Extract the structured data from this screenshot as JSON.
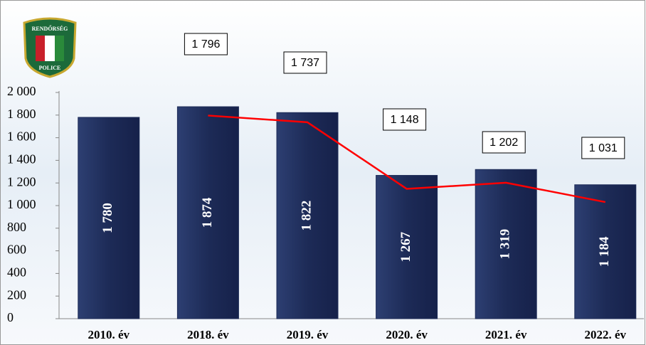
{
  "logo": {
    "top": "RENDŐRSÉG",
    "bottom": "POLICE"
  },
  "chart_data": {
    "type": "bar",
    "categories": [
      "2010. év",
      "2018. év",
      "2019. év",
      "2020. év",
      "2021. év",
      "2022. év"
    ],
    "series": [
      {
        "type": "bar",
        "color": "#1d2b57",
        "values": [
          1780,
          1874,
          1822,
          1267,
          1319,
          1184
        ],
        "value_labels": [
          "1 780",
          "1 874",
          "1 822",
          "1 267",
          "1 319",
          "1 184"
        ]
      },
      {
        "type": "line",
        "color": "#ff0000",
        "values": [
          null,
          1796,
          1737,
          1148,
          1202,
          1031
        ],
        "value_labels": [
          null,
          "1 796",
          "1 737",
          "1 148",
          "1 202",
          "1 031"
        ]
      }
    ],
    "ylim": [
      0,
      2000
    ],
    "yticks": [
      0,
      200,
      400,
      600,
      800,
      {
        "value": 1000,
        "label": "1 000"
      },
      {
        "value": 1200,
        "label": "1 200"
      },
      {
        "value": 1400,
        "label": "1 400"
      },
      {
        "value": 1600,
        "label": "1 600"
      },
      {
        "value": 1800,
        "label": "1 800"
      },
      {
        "value": 2000,
        "label": "2 000"
      }
    ]
  }
}
